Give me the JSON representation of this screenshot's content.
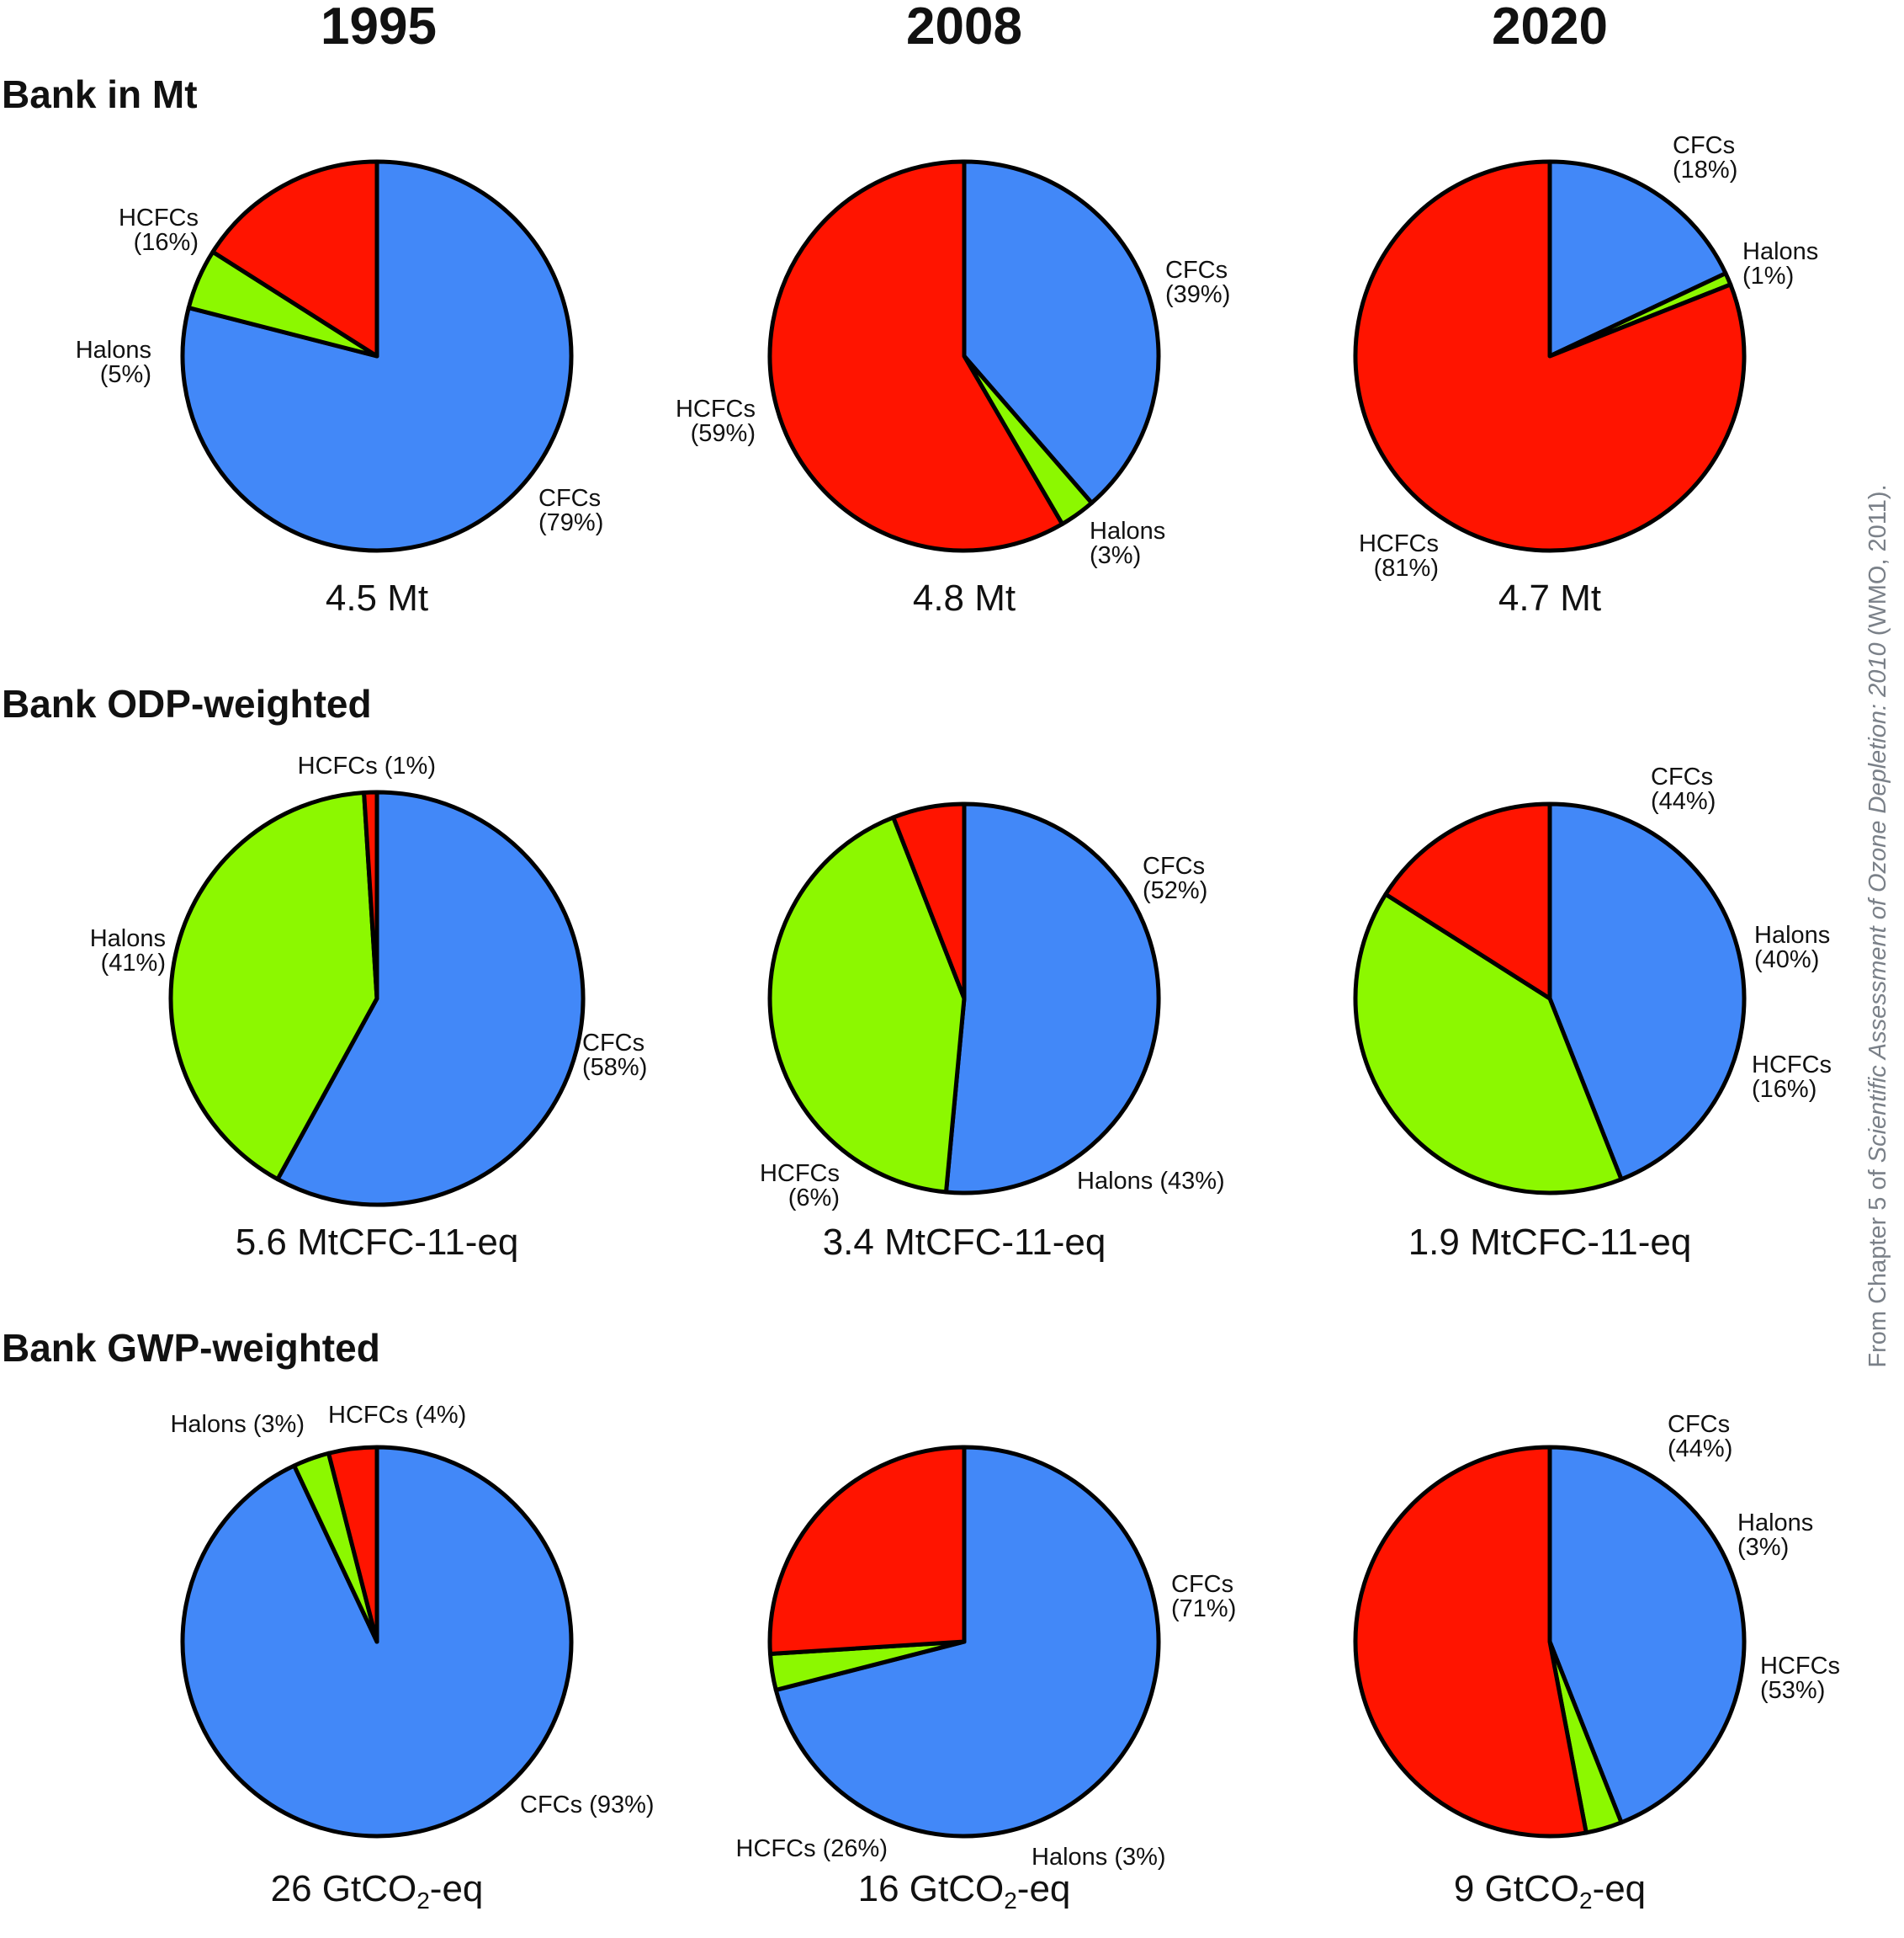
{
  "colors": {
    "CFCs": "#4288f8",
    "HCFCs": "#ff1400",
    "Halons": "#8cf800",
    "outline": "#000000"
  },
  "years": [
    "1995",
    "2008",
    "2020"
  ],
  "rows": [
    {
      "title": "Bank in Mt"
    },
    {
      "title": "Bank ODP-weighted"
    },
    {
      "title": "Bank GWP-weighted"
    }
  ],
  "source": {
    "prefix": "From Chapter 5 of ",
    "title": "Scientific Assessment of Ozone Depletion: 2010",
    "suffix": " (WMO, 2011)."
  },
  "chart_data": [
    {
      "type": "pie",
      "year": "1995",
      "row": "Bank in Mt",
      "total": {
        "value": "4.5",
        "unit": "Mt"
      },
      "slices": [
        {
          "group": "CFCs",
          "value": 79,
          "label": [
            "CFCs",
            "(79%)"
          ]
        },
        {
          "group": "Halons",
          "value": 5,
          "label": [
            "Halons",
            "(5%)"
          ]
        },
        {
          "group": "HCFCs",
          "value": 16,
          "label": [
            "HCFCs",
            "(16%)"
          ]
        }
      ]
    },
    {
      "type": "pie",
      "year": "2008",
      "row": "Bank in Mt",
      "total": {
        "value": "4.8",
        "unit": "Mt"
      },
      "slices": [
        {
          "group": "CFCs",
          "value": 39,
          "label": [
            "CFCs",
            "(39%)"
          ]
        },
        {
          "group": "Halons",
          "value": 3,
          "label": [
            "Halons",
            "(3%)"
          ]
        },
        {
          "group": "HCFCs",
          "value": 59,
          "label": [
            "HCFCs",
            "(59%)"
          ]
        }
      ]
    },
    {
      "type": "pie",
      "year": "2020",
      "row": "Bank in Mt",
      "total": {
        "value": "4.7",
        "unit": "Mt"
      },
      "slices": [
        {
          "group": "CFCs",
          "value": 18,
          "label": [
            "CFCs",
            "(18%)"
          ]
        },
        {
          "group": "Halons",
          "value": 1,
          "label": [
            "Halons",
            "(1%)"
          ]
        },
        {
          "group": "HCFCs",
          "value": 81,
          "label": [
            "HCFCs",
            "(81%)"
          ]
        }
      ]
    },
    {
      "type": "pie",
      "year": "1995",
      "row": "Bank ODP-weighted",
      "total": {
        "value": "5.6",
        "unit": "MtCFC-11-eq"
      },
      "slices": [
        {
          "group": "CFCs",
          "value": 58,
          "label": [
            "CFCs",
            "(58%)"
          ]
        },
        {
          "group": "Halons",
          "value": 41,
          "label": [
            "Halons",
            "(41%)"
          ]
        },
        {
          "group": "HCFCs",
          "value": 1,
          "label": [
            "HCFCs (1%)"
          ]
        }
      ]
    },
    {
      "type": "pie",
      "year": "2008",
      "row": "Bank ODP-weighted",
      "total": {
        "value": "3.4",
        "unit": "MtCFC-11-eq"
      },
      "slices": [
        {
          "group": "CFCs",
          "value": 52,
          "label": [
            "CFCs",
            "(52%)"
          ]
        },
        {
          "group": "Halons",
          "value": 43,
          "label": [
            "Halons (43%)"
          ]
        },
        {
          "group": "HCFCs",
          "value": 6,
          "label": [
            "HCFCs",
            "(6%)"
          ]
        }
      ]
    },
    {
      "type": "pie",
      "year": "2020",
      "row": "Bank ODP-weighted",
      "total": {
        "value": "1.9",
        "unit": "MtCFC-11-eq"
      },
      "slices": [
        {
          "group": "CFCs",
          "value": 44,
          "label": [
            "CFCs",
            "(44%)"
          ]
        },
        {
          "group": "Halons",
          "value": 40,
          "label": [
            "Halons",
            "(40%)"
          ]
        },
        {
          "group": "HCFCs",
          "value": 16,
          "label": [
            "HCFCs",
            "(16%)"
          ]
        }
      ]
    },
    {
      "type": "pie",
      "year": "1995",
      "row": "Bank GWP-weighted",
      "total": {
        "value": "26",
        "unit": "GtCO2-eq"
      },
      "slices": [
        {
          "group": "CFCs",
          "value": 93,
          "label": [
            "CFCs (93%)"
          ]
        },
        {
          "group": "Halons",
          "value": 3,
          "label": [
            "Halons (3%)"
          ]
        },
        {
          "group": "HCFCs",
          "value": 4,
          "label": [
            "HCFCs (4%)"
          ]
        }
      ]
    },
    {
      "type": "pie",
      "year": "2008",
      "row": "Bank GWP-weighted",
      "total": {
        "value": "16",
        "unit": "GtCO2-eq"
      },
      "slices": [
        {
          "group": "CFCs",
          "value": 71,
          "label": [
            "CFCs",
            "(71%)"
          ]
        },
        {
          "group": "Halons",
          "value": 3,
          "label": [
            "Halons (3%)"
          ]
        },
        {
          "group": "HCFCs",
          "value": 26,
          "label": [
            "HCFCs (26%)"
          ]
        }
      ]
    },
    {
      "type": "pie",
      "year": "2020",
      "row": "Bank GWP-weighted",
      "total": {
        "value": "9",
        "unit": "GtCO2-eq"
      },
      "slices": [
        {
          "group": "CFCs",
          "value": 44,
          "label": [
            "CFCs",
            "(44%)"
          ]
        },
        {
          "group": "Halons",
          "value": 3,
          "label": [
            "Halons",
            "(3%)"
          ]
        },
        {
          "group": "HCFCs",
          "value": 53,
          "label": [
            "HCFCs",
            "(53%)"
          ]
        }
      ]
    }
  ]
}
